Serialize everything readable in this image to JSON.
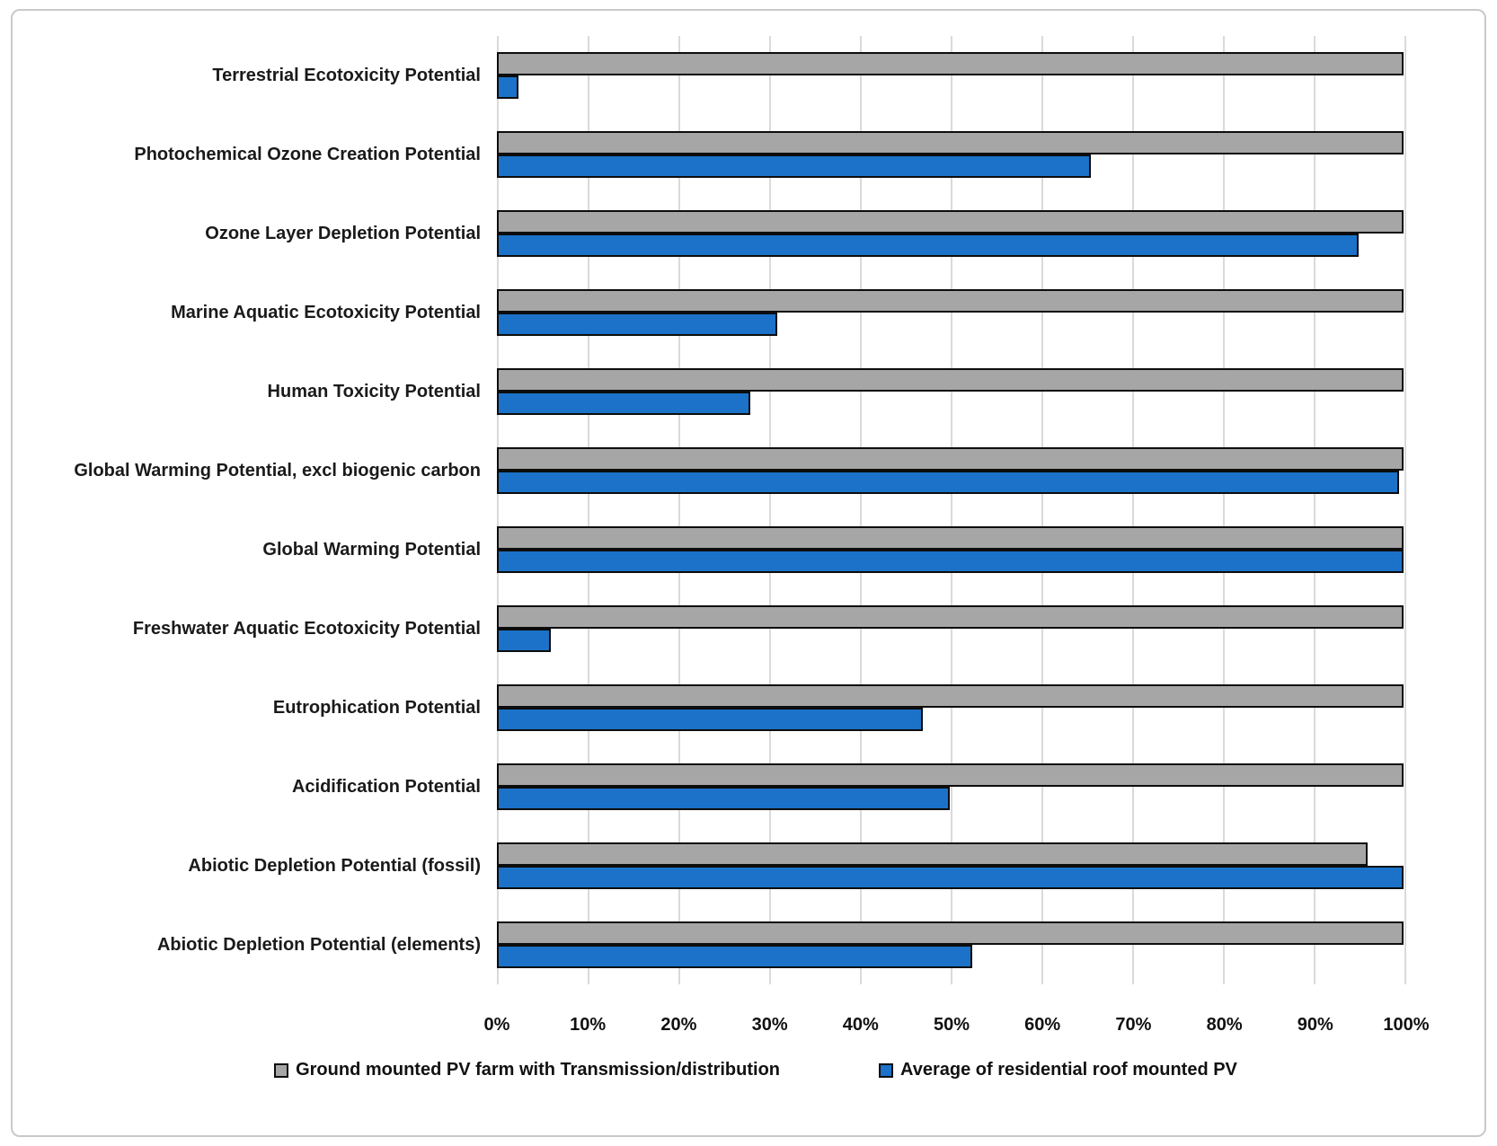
{
  "figure": {
    "border_color": "#c9c9c9",
    "background": "#ffffff"
  },
  "chart_data": {
    "type": "bar",
    "orientation": "horizontal",
    "title": "",
    "xlabel": "",
    "ylabel": "",
    "xlim": [
      0,
      100
    ],
    "grid": true,
    "gridline_color": "#dadada",
    "bar_border_color": "#0d0d0d",
    "legend_position": "bottom",
    "x_ticks": [
      "0%",
      "10%",
      "20%",
      "30%",
      "40%",
      "50%",
      "60%",
      "70%",
      "80%",
      "90%",
      "100%"
    ],
    "categories": [
      "Terrestrial Ecotoxicity Potential",
      "Photochemical Ozone Creation Potential",
      "Ozone Layer Depletion Potential",
      "Marine Aquatic Ecotoxicity Potential",
      "Human Toxicity Potential",
      "Global Warming Potential, excl biogenic carbon",
      "Global Warming Potential",
      "Freshwater Aquatic Ecotoxicity Potential",
      "Eutrophication Potential",
      "Acidification Potential",
      "Abiotic Depletion Potential (fossil)",
      "Abiotic Depletion Potential (elements)"
    ],
    "series": [
      {
        "name": "Ground mounted PV farm with Transmission/distribution",
        "color": "#a6a6a6",
        "values": [
          100,
          100,
          100,
          100,
          100,
          100,
          100,
          100,
          100,
          100,
          96,
          100
        ]
      },
      {
        "name": "Average of residential roof mounted PV",
        "color": "#1b72c8",
        "values": [
          2.5,
          65.5,
          95,
          31,
          28,
          99.5,
          100,
          6,
          47,
          50,
          100,
          52.5
        ]
      }
    ]
  }
}
